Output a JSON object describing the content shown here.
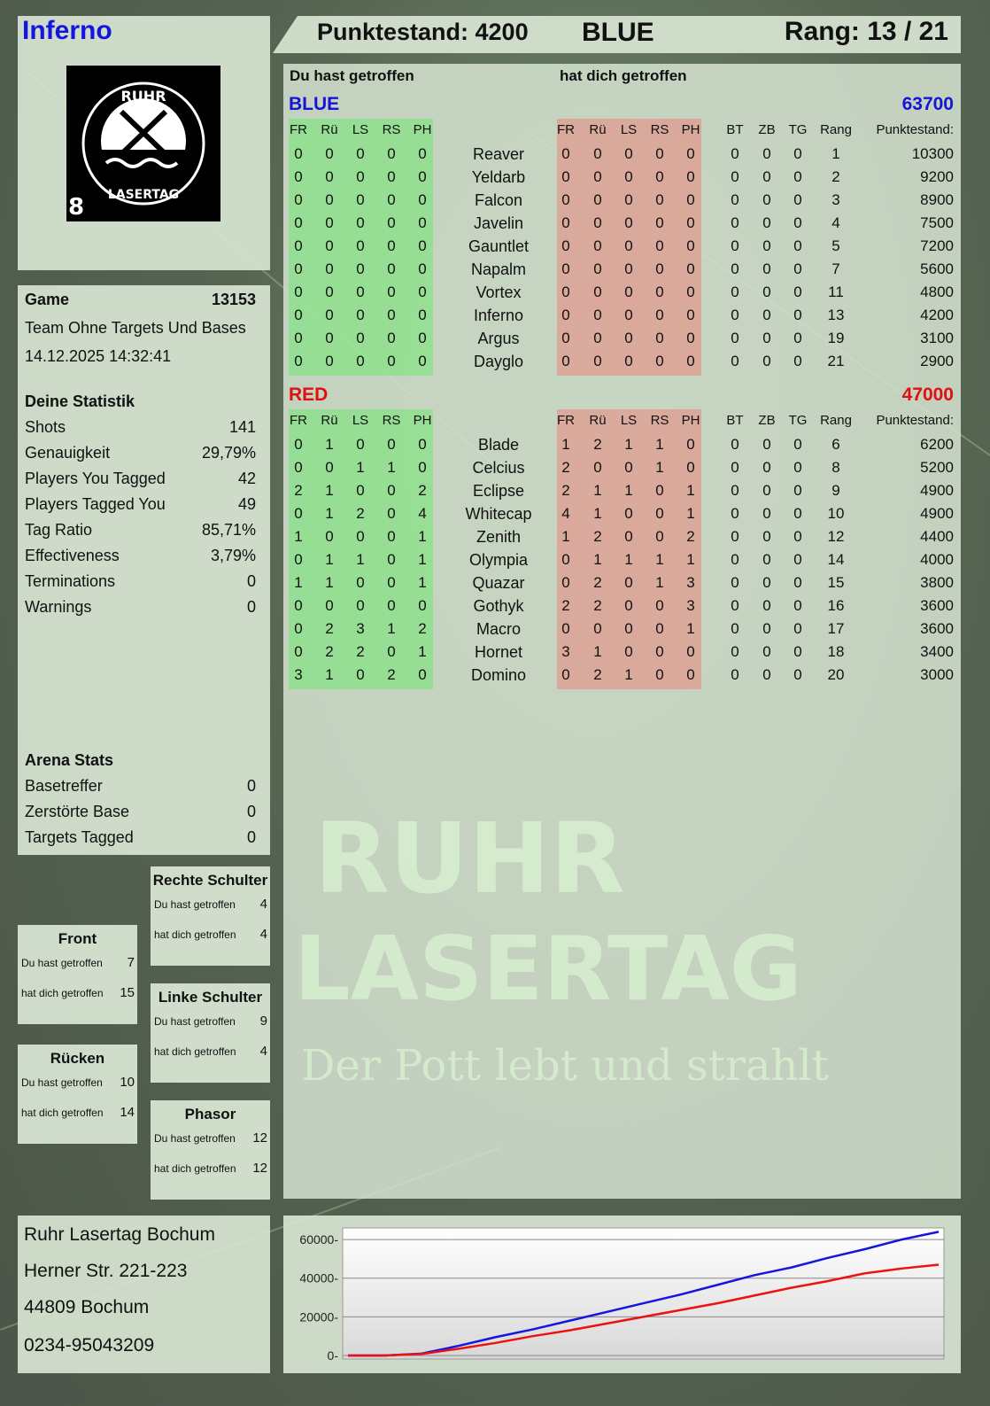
{
  "player": {
    "name": "Inferno",
    "score_label": "Punktestand: 4200",
    "team": "BLUE",
    "rank_label": "Rang: 13 / 21"
  },
  "logo": {
    "text": "RUHR LASERTAG",
    "badge": "8"
  },
  "game": {
    "label": "Game",
    "id": "13153",
    "mode": "Team Ohne Targets Und Bases",
    "datetime": "14.12.2025 14:32:41"
  },
  "stats": {
    "title": "Deine Statistik",
    "items": [
      {
        "label": "Shots",
        "value": "141"
      },
      {
        "label": "Genauigkeit",
        "value": "29,79%"
      },
      {
        "label": "Players You Tagged",
        "value": "42"
      },
      {
        "label": "Players Tagged You",
        "value": "49"
      },
      {
        "label": "Tag Ratio",
        "value": "85,71%"
      },
      {
        "label": "Effectiveness",
        "value": "3,79%"
      },
      {
        "label": "Terminations",
        "value": "0"
      },
      {
        "label": "Warnings",
        "value": "0"
      }
    ]
  },
  "arena": {
    "title": "Arena Stats",
    "items": [
      {
        "label": "Basetreffer",
        "value": "0"
      },
      {
        "label": "Zerstörte Base",
        "value": "0"
      },
      {
        "label": "Targets Tagged",
        "value": "0"
      }
    ]
  },
  "locations": {
    "hit_label": "Du hast getroffen",
    "got_label": "hat dich getroffen",
    "items": [
      {
        "title": "Rechte Schulter",
        "hit": "4",
        "got": "4"
      },
      {
        "title": "Front",
        "hit": "7",
        "got": "15"
      },
      {
        "title": "Linke Schulter",
        "hit": "9",
        "got": "4"
      },
      {
        "title": "Rücken",
        "hit": "10",
        "got": "14"
      },
      {
        "title": "Phasor",
        "hit": "12",
        "got": "12"
      }
    ]
  },
  "address": [
    "Ruhr Lasertag Bochum",
    "Herner Str. 221-223",
    "44809 Bochum",
    "0234-95043209"
  ],
  "table": {
    "you_hit_label": "Du hast getroffen",
    "hit_you_label": "hat dich getroffen",
    "hit_cols": [
      "FR",
      "Rü",
      "LS",
      "RS",
      "PH"
    ],
    "extra_cols": [
      "BT",
      "ZB",
      "TG",
      "Rang",
      "Punktestand:"
    ],
    "teams": [
      {
        "name": "BLUE",
        "score": "63700",
        "color": "#1515d8",
        "players": [
          [
            "Reaver",
            [
              0,
              0,
              0,
              0,
              0
            ],
            [
              0,
              0,
              0,
              0,
              0
            ],
            [
              0,
              0,
              0
            ],
            "1",
            "10300"
          ],
          [
            "Yeldarb",
            [
              0,
              0,
              0,
              0,
              0
            ],
            [
              0,
              0,
              0,
              0,
              0
            ],
            [
              0,
              0,
              0
            ],
            "2",
            "9200"
          ],
          [
            "Falcon",
            [
              0,
              0,
              0,
              0,
              0
            ],
            [
              0,
              0,
              0,
              0,
              0
            ],
            [
              0,
              0,
              0
            ],
            "3",
            "8900"
          ],
          [
            "Javelin",
            [
              0,
              0,
              0,
              0,
              0
            ],
            [
              0,
              0,
              0,
              0,
              0
            ],
            [
              0,
              0,
              0
            ],
            "4",
            "7500"
          ],
          [
            "Gauntlet",
            [
              0,
              0,
              0,
              0,
              0
            ],
            [
              0,
              0,
              0,
              0,
              0
            ],
            [
              0,
              0,
              0
            ],
            "5",
            "7200"
          ],
          [
            "Napalm",
            [
              0,
              0,
              0,
              0,
              0
            ],
            [
              0,
              0,
              0,
              0,
              0
            ],
            [
              0,
              0,
              0
            ],
            "7",
            "5600"
          ],
          [
            "Vortex",
            [
              0,
              0,
              0,
              0,
              0
            ],
            [
              0,
              0,
              0,
              0,
              0
            ],
            [
              0,
              0,
              0
            ],
            "11",
            "4800"
          ],
          [
            "Inferno",
            [
              0,
              0,
              0,
              0,
              0
            ],
            [
              0,
              0,
              0,
              0,
              0
            ],
            [
              0,
              0,
              0
            ],
            "13",
            "4200"
          ],
          [
            "Argus",
            [
              0,
              0,
              0,
              0,
              0
            ],
            [
              0,
              0,
              0,
              0,
              0
            ],
            [
              0,
              0,
              0
            ],
            "19",
            "3100"
          ],
          [
            "Dayglo",
            [
              0,
              0,
              0,
              0,
              0
            ],
            [
              0,
              0,
              0,
              0,
              0
            ],
            [
              0,
              0,
              0
            ],
            "21",
            "2900"
          ]
        ]
      },
      {
        "name": "RED",
        "score": "47000",
        "color": "#e01010",
        "players": [
          [
            "Blade",
            [
              0,
              1,
              0,
              0,
              0
            ],
            [
              1,
              2,
              1,
              1,
              0
            ],
            [
              0,
              0,
              0
            ],
            "6",
            "6200"
          ],
          [
            "Celcius",
            [
              0,
              0,
              1,
              1,
              0
            ],
            [
              2,
              0,
              0,
              1,
              0
            ],
            [
              0,
              0,
              0
            ],
            "8",
            "5200"
          ],
          [
            "Eclipse",
            [
              2,
              1,
              0,
              0,
              2
            ],
            [
              2,
              1,
              1,
              0,
              1
            ],
            [
              0,
              0,
              0
            ],
            "9",
            "4900"
          ],
          [
            "Whitecap",
            [
              0,
              1,
              2,
              0,
              4
            ],
            [
              4,
              1,
              0,
              0,
              1
            ],
            [
              0,
              0,
              0
            ],
            "10",
            "4900"
          ],
          [
            "Zenith",
            [
              1,
              0,
              0,
              0,
              1
            ],
            [
              1,
              2,
              0,
              0,
              2
            ],
            [
              0,
              0,
              0
            ],
            "12",
            "4400"
          ],
          [
            "Olympia",
            [
              0,
              1,
              1,
              0,
              1
            ],
            [
              0,
              1,
              1,
              1,
              1
            ],
            [
              0,
              0,
              0
            ],
            "14",
            "4000"
          ],
          [
            "Quazar",
            [
              1,
              1,
              0,
              0,
              1
            ],
            [
              0,
              2,
              0,
              1,
              3
            ],
            [
              0,
              0,
              0
            ],
            "15",
            "3800"
          ],
          [
            "Gothyk",
            [
              0,
              0,
              0,
              0,
              0
            ],
            [
              2,
              2,
              0,
              0,
              3
            ],
            [
              0,
              0,
              0
            ],
            "16",
            "3600"
          ],
          [
            "Macro",
            [
              0,
              2,
              3,
              1,
              2
            ],
            [
              0,
              0,
              0,
              0,
              1
            ],
            [
              0,
              0,
              0
            ],
            "17",
            "3600"
          ],
          [
            "Hornet",
            [
              0,
              2,
              2,
              0,
              1
            ],
            [
              3,
              1,
              0,
              0,
              0
            ],
            [
              0,
              0,
              0
            ],
            "18",
            "3400"
          ],
          [
            "Domino",
            [
              3,
              1,
              0,
              2,
              0
            ],
            [
              0,
              2,
              1,
              0,
              0
            ],
            [
              0,
              0,
              0
            ],
            "20",
            "3000"
          ]
        ]
      }
    ]
  },
  "watermark": {
    "line1": "RUHR",
    "line2": "LASERTAG",
    "slogan": "Der Pott lebt und strahlt"
  },
  "chart_data": {
    "type": "line",
    "ylim": [
      0,
      66000
    ],
    "yticks": [
      0,
      20000,
      40000,
      60000
    ],
    "grid": true,
    "series": [
      {
        "color": "#1515e0",
        "values": [
          0,
          0,
          1000,
          5000,
          9500,
          13500,
          18000,
          22500,
          27000,
          31500,
          36500,
          41500,
          45500,
          50500,
          55000,
          60000,
          64000
        ]
      },
      {
        "color": "#ee1111",
        "values": [
          0,
          0,
          800,
          3500,
          6500,
          10000,
          13000,
          16500,
          20000,
          23500,
          27000,
          31000,
          35000,
          38500,
          42500,
          45000,
          47000
        ]
      }
    ]
  }
}
